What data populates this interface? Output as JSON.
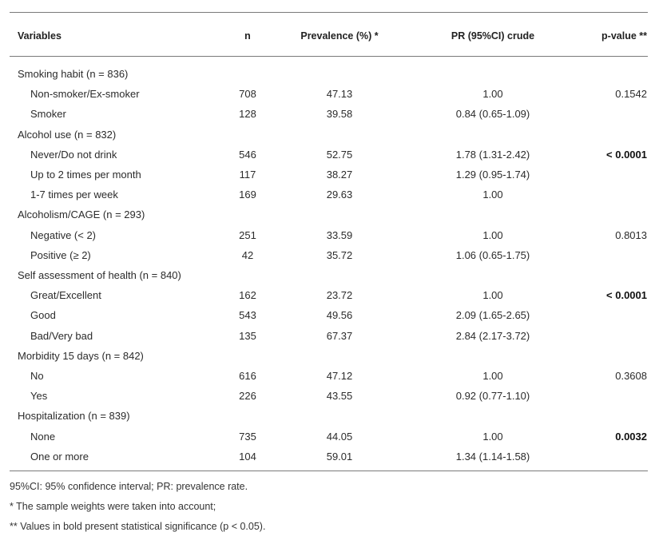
{
  "headers": {
    "variables": "Variables",
    "n": "n",
    "prevalence": "Prevalence (%) *",
    "pr": "PR (95%CI) crude",
    "pvalue": "p-value **"
  },
  "rows": [
    {
      "variable": "Smoking habit (n = 836)",
      "level": 0,
      "n": "",
      "prevalence": "",
      "pr": "",
      "p": "",
      "p_bold": false
    },
    {
      "variable": "Non-smoker/Ex-smoker",
      "level": 1,
      "n": "708",
      "prevalence": "47.13",
      "pr": "1.00",
      "p": "0.1542",
      "p_bold": false
    },
    {
      "variable": "Smoker",
      "level": 1,
      "n": "128",
      "prevalence": "39.58",
      "pr": "0.84 (0.65-1.09)",
      "p": "",
      "p_bold": false
    },
    {
      "variable": "Alcohol use (n = 832)",
      "level": 0,
      "n": "",
      "prevalence": "",
      "pr": "",
      "p": "",
      "p_bold": false
    },
    {
      "variable": "Never/Do not drink",
      "level": 1,
      "n": "546",
      "prevalence": "52.75",
      "pr": "1.78 (1.31-2.42)",
      "p": "< 0.0001",
      "p_bold": true
    },
    {
      "variable": "Up to 2 times per month",
      "level": 1,
      "n": "117",
      "prevalence": "38.27",
      "pr": "1.29 (0.95-1.74)",
      "p": "",
      "p_bold": false
    },
    {
      "variable": "1-7 times per week",
      "level": 1,
      "n": "169",
      "prevalence": "29.63",
      "pr": "1.00",
      "p": "",
      "p_bold": false
    },
    {
      "variable": "Alcoholism/CAGE (n = 293)",
      "level": 0,
      "n": "",
      "prevalence": "",
      "pr": "",
      "p": "",
      "p_bold": false
    },
    {
      "variable": "Negative (< 2)",
      "level": 1,
      "n": "251",
      "prevalence": "33.59",
      "pr": "1.00",
      "p": "0.8013",
      "p_bold": false
    },
    {
      "variable": "Positive (≥ 2)",
      "level": 1,
      "n": "42",
      "prevalence": "35.72",
      "pr": "1.06 (0.65-1.75)",
      "p": "",
      "p_bold": false
    },
    {
      "variable": "Self assessment of health (n = 840)",
      "level": 0,
      "n": "",
      "prevalence": "",
      "pr": "",
      "p": "",
      "p_bold": false
    },
    {
      "variable": "Great/Excellent",
      "level": 1,
      "n": "162",
      "prevalence": "23.72",
      "pr": "1.00",
      "p": "< 0.0001",
      "p_bold": true
    },
    {
      "variable": "Good",
      "level": 1,
      "n": "543",
      "prevalence": "49.56",
      "pr": "2.09 (1.65-2.65)",
      "p": "",
      "p_bold": false
    },
    {
      "variable": "Bad/Very bad",
      "level": 1,
      "n": "135",
      "prevalence": "67.37",
      "pr": "2.84 (2.17-3.72)",
      "p": "",
      "p_bold": false
    },
    {
      "variable": "Morbidity 15 days (n = 842)",
      "level": 0,
      "n": "",
      "prevalence": "",
      "pr": "",
      "p": "",
      "p_bold": false
    },
    {
      "variable": "No",
      "level": 1,
      "n": "616",
      "prevalence": "47.12",
      "pr": "1.00",
      "p": "0.3608",
      "p_bold": false
    },
    {
      "variable": "Yes",
      "level": 1,
      "n": "226",
      "prevalence": "43.55",
      "pr": "0.92 (0.77-1.10)",
      "p": "",
      "p_bold": false
    },
    {
      "variable": "Hospitalization (n = 839)",
      "level": 0,
      "n": "",
      "prevalence": "",
      "pr": "",
      "p": "",
      "p_bold": false
    },
    {
      "variable": "None",
      "level": 1,
      "n": "735",
      "prevalence": "44.05",
      "pr": "1.00",
      "p": "0.0032",
      "p_bold": true
    },
    {
      "variable": "One or more",
      "level": 1,
      "n": "104",
      "prevalence": "59.01",
      "pr": "1.34 (1.14-1.58)",
      "p": "",
      "p_bold": false
    }
  ],
  "notes": [
    "95%CI: 95% confidence interval; PR: prevalence rate.",
    "* The sample weights were taken into account;",
    "** Values in bold present statistical significance (p < 0.05)."
  ]
}
